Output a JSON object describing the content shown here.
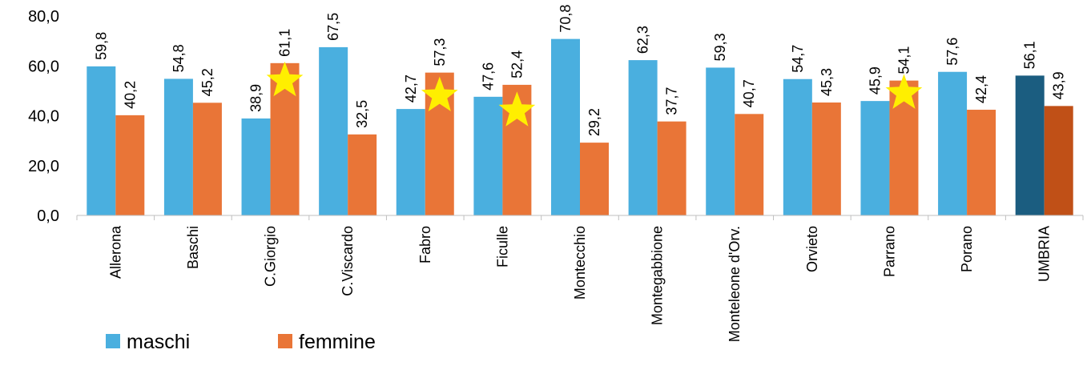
{
  "chart_data": {
    "type": "bar",
    "title": "",
    "xlabel": "",
    "ylabel": "",
    "ylim": [
      0,
      80
    ],
    "yticks": [
      "0,0",
      "20,0",
      "40,0",
      "60,0",
      "80,0"
    ],
    "categories": [
      "Allerona",
      "Baschi",
      "C.Giorgio",
      "C.Viscardo",
      "Fabro",
      "Ficulle",
      "Montecchio",
      "Montegabbione",
      "Monteleone d'Orv.",
      "Orvieto",
      "Parrano",
      "Porano",
      "UMBRIA"
    ],
    "series": [
      {
        "name": "maschi",
        "color": "#4AAFDF",
        "highlight_color": "#1B5D80",
        "values": [
          59.8,
          54.8,
          38.9,
          67.5,
          42.7,
          47.6,
          70.8,
          62.3,
          59.3,
          54.7,
          45.9,
          57.6,
          56.1
        ],
        "labels": [
          "59,8",
          "54,8",
          "38,9",
          "67,5",
          "42,7",
          "47,6",
          "70,8",
          "62,3",
          "59,3",
          "54,7",
          "45,9",
          "57,6",
          "56,1"
        ]
      },
      {
        "name": "femmine",
        "color": "#E97537",
        "highlight_color": "#C05017",
        "values": [
          40.2,
          45.2,
          61.1,
          32.5,
          57.3,
          52.4,
          29.2,
          37.7,
          40.7,
          45.3,
          54.1,
          42.4,
          43.9
        ],
        "labels": [
          "40,2",
          "45,2",
          "61,1",
          "32,5",
          "57,3",
          "52,4",
          "29,2",
          "37,7",
          "40,7",
          "45,3",
          "54,1",
          "42,4",
          "43,9"
        ]
      }
    ],
    "highlight_category": "UMBRIA",
    "star_markers": [
      {
        "category": "C.Giorgio",
        "series": "femmine",
        "value": 54
      },
      {
        "category": "Fabro",
        "series": "femmine",
        "value": 48
      },
      {
        "category": "Ficulle",
        "series": "femmine",
        "value": 42
      },
      {
        "category": "Parrano",
        "series": "femmine",
        "value": 49
      }
    ],
    "star_color": "#FFEF00",
    "legend": {
      "position": "bottom-left",
      "entries": [
        "maschi",
        "femmine"
      ]
    },
    "grid": false
  }
}
